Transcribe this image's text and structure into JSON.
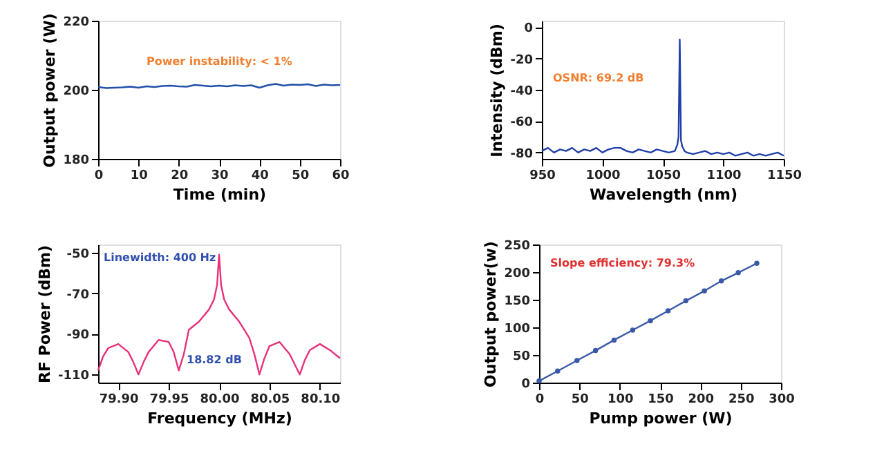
{
  "chart_data": [
    {
      "type": "line",
      "xlabel": "Time (min)",
      "ylabel": "Output power (W)",
      "annotations": [
        "Power instability:  < 1%"
      ],
      "xlim": [
        0,
        60
      ],
      "ylim": [
        180,
        220
      ],
      "xticks": [
        0,
        10,
        20,
        30,
        40,
        50,
        60
      ],
      "yticks": [
        180,
        200,
        220
      ],
      "grid": false,
      "marker": "none",
      "series": [
        {
          "color": "#2050a8",
          "x": [
            0,
            2,
            4,
            6,
            8,
            10,
            12,
            14,
            16,
            18,
            20,
            22,
            24,
            26,
            28,
            30,
            32,
            34,
            36,
            38,
            40,
            42,
            44,
            46,
            48,
            50,
            52,
            54,
            56,
            58,
            60
          ],
          "values": [
            200.8,
            200.5,
            200.6,
            200.7,
            200.9,
            200.6,
            201.0,
            200.8,
            201.1,
            201.2,
            201.0,
            200.9,
            201.4,
            201.2,
            201.0,
            201.2,
            201.0,
            201.3,
            201.1,
            201.3,
            200.6,
            201.3,
            201.7,
            201.2,
            201.5,
            201.4,
            201.6,
            201.1,
            201.5,
            201.3,
            201.4
          ]
        }
      ]
    },
    {
      "type": "line",
      "xlabel": "Wavelength (nm)",
      "ylabel": "Intensity (dBm)",
      "annotations": [
        "OSNR:  69.2 dB"
      ],
      "xlim": [
        950,
        1150
      ],
      "ylim": [
        -84,
        4
      ],
      "xticks": [
        950,
        1000,
        1050,
        1100,
        1150
      ],
      "yticks": [
        0,
        -20,
        -40,
        -60,
        -80
      ],
      "grid": false,
      "marker": "none",
      "series": [
        {
          "color": "#2040a8",
          "x": [
            950,
            955,
            960,
            965,
            970,
            975,
            980,
            985,
            990,
            995,
            1000,
            1005,
            1010,
            1015,
            1020,
            1025,
            1030,
            1035,
            1040,
            1045,
            1050,
            1055,
            1060,
            1062,
            1063,
            1064,
            1065,
            1066,
            1068,
            1070,
            1075,
            1080,
            1085,
            1090,
            1095,
            1100,
            1105,
            1110,
            1115,
            1120,
            1125,
            1130,
            1135,
            1140,
            1145,
            1150
          ],
          "values": [
            -79,
            -77,
            -80,
            -78,
            -79,
            -77,
            -80,
            -78,
            -79,
            -77,
            -80,
            -78,
            -77,
            -77,
            -79,
            -80,
            -78,
            -79,
            -80,
            -78,
            -79,
            -80,
            -79,
            -75,
            -70,
            -8,
            -72,
            -76,
            -79,
            -80,
            -81,
            -80,
            -79,
            -81,
            -80,
            -81,
            -80,
            -82,
            -81,
            -80,
            -82,
            -81,
            -82,
            -81,
            -80,
            -82
          ]
        }
      ]
    },
    {
      "type": "line",
      "xlabel": "Frequency (MHz)",
      "ylabel": "RF Power (dBm)",
      "annotations": [
        "Linewidth:  400 Hz",
        "18.82 dB"
      ],
      "xlim": [
        79.88,
        80.12
      ],
      "ylim": [
        -114,
        -46
      ],
      "xticks": [
        {
          "value": 79.9,
          "label": "79.90"
        },
        {
          "value": 79.95,
          "label": "79.95"
        },
        {
          "value": 80.0,
          "label": "80.00"
        },
        {
          "value": 80.05,
          "label": "80.05"
        },
        {
          "value": 80.1,
          "label": "80.10"
        }
      ],
      "yticks": [
        -50,
        -70,
        -90,
        -110
      ],
      "grid": false,
      "marker": "none",
      "series": [
        {
          "color": "#e8307a",
          "x": [
            79.88,
            79.885,
            79.89,
            79.9,
            79.91,
            79.915,
            79.92,
            79.925,
            79.93,
            79.94,
            79.95,
            79.955,
            79.96,
            79.965,
            79.97,
            79.98,
            79.99,
            79.995,
            79.998,
            80.0,
            80.002,
            80.005,
            80.01,
            80.02,
            80.03,
            80.035,
            80.04,
            80.045,
            80.05,
            80.06,
            80.07,
            80.075,
            80.08,
            80.085,
            80.09,
            80.1,
            80.11,
            80.12
          ],
          "values": [
            -108,
            -101,
            -97,
            -95,
            -99,
            -104,
            -110,
            -104,
            -99,
            -93,
            -94,
            -99,
            -108,
            -100,
            -88,
            -84,
            -78,
            -73,
            -66,
            -51,
            -66,
            -73,
            -78,
            -84,
            -92,
            -100,
            -110,
            -102,
            -96,
            -94,
            -100,
            -105,
            -110,
            -103,
            -98,
            -95,
            -98,
            -102
          ]
        }
      ]
    },
    {
      "type": "line",
      "xlabel": "Pump power (W)",
      "ylabel": "Output power(w)",
      "annotations": [
        "Slope efficiency:  79.3%"
      ],
      "xlim": [
        0,
        300
      ],
      "ylim": [
        0,
        250
      ],
      "xticks": [
        0,
        50,
        100,
        150,
        200,
        250,
        300
      ],
      "yticks": [
        0,
        50,
        100,
        150,
        200,
        250
      ],
      "grid": false,
      "marker": "circle",
      "series": [
        {
          "color": "#3a5aa8",
          "x": [
            0,
            23,
            47,
            70,
            93,
            116,
            138,
            160,
            182,
            205,
            226,
            247,
            270
          ],
          "values": [
            3,
            21,
            40,
            58,
            77,
            95,
            112,
            130,
            148,
            166,
            184,
            199,
            216
          ]
        }
      ]
    }
  ]
}
